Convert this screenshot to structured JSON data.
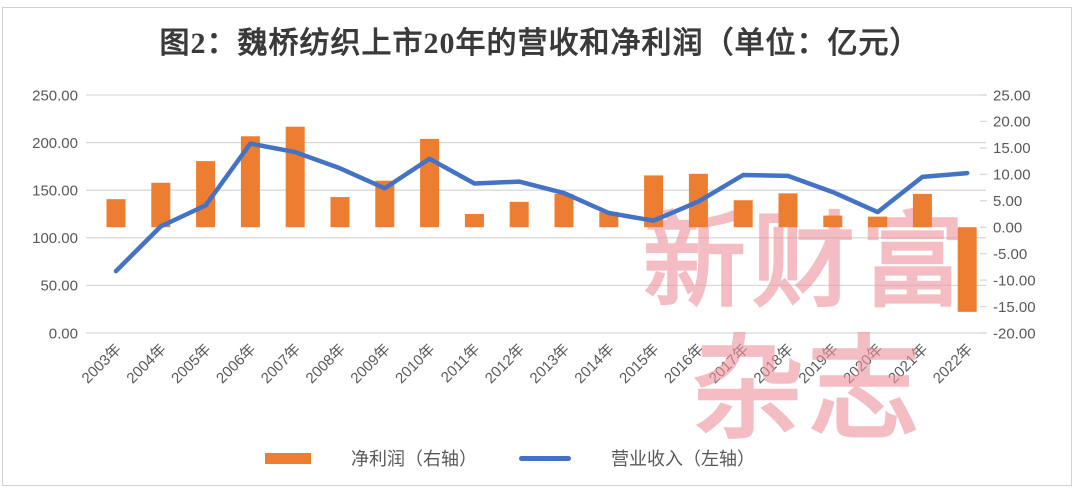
{
  "title": "图2：魏桥纺织上市20年的营收和净利润（单位：亿元）",
  "watermark": {
    "line1": "新财富",
    "line2": "杂志",
    "color": "#ec949e"
  },
  "legend": [
    {
      "label": "净利润（右轴）",
      "swatch": "bar",
      "color": "#ED7D31"
    },
    {
      "label": "营业收入（左轴）",
      "swatch": "line",
      "color": "#4472C4"
    }
  ],
  "chart_data": {
    "type": "combo-bar-line",
    "title": "图2：魏桥纺织上市20年的营收和净利润（单位：亿元）",
    "unit": "亿元",
    "categories": [
      "2003年",
      "2004年",
      "2005年",
      "2006年",
      "2007年",
      "2008年",
      "2009年",
      "2010年",
      "2011年",
      "2012年",
      "2013年",
      "2014年",
      "2015年",
      "2016年",
      "2017年",
      "2018年",
      "2019年",
      "2020年",
      "2021年",
      "2022年"
    ],
    "series": [
      {
        "name": "净利润（右轴）",
        "type": "bar",
        "axis": "right",
        "color": "#ED7D31",
        "values": [
          5.3,
          8.4,
          12.5,
          17.2,
          19.0,
          5.7,
          8.8,
          16.7,
          2.5,
          4.8,
          6.3,
          2.9,
          9.8,
          10.1,
          5.1,
          6.4,
          2.2,
          2.0,
          6.3,
          -16.0
        ]
      },
      {
        "name": "营业收入（左轴）",
        "type": "line",
        "axis": "left",
        "color": "#4472C4",
        "values": [
          65,
          112,
          134,
          199,
          190,
          173,
          152,
          183,
          157,
          159,
          147,
          126,
          118,
          138,
          166,
          165,
          148,
          127,
          164,
          168
        ]
      }
    ],
    "left_axis": {
      "min": 0,
      "max": 250,
      "step": 50,
      "labels": [
        "250.00",
        "200.00",
        "150.00",
        "100.00",
        "50.00",
        "0.00"
      ]
    },
    "right_axis": {
      "min": -20,
      "max": 25,
      "step": 5,
      "labels": [
        "25.00",
        "20.00",
        "15.00",
        "10.00",
        "5.00",
        "0.00",
        "-5.00",
        "-10.00",
        "-15.00",
        "-20.00"
      ]
    },
    "grid": true,
    "gridline_color": "#d9d9d9",
    "axis_label_color": "#595959",
    "legend_position": "bottom"
  }
}
